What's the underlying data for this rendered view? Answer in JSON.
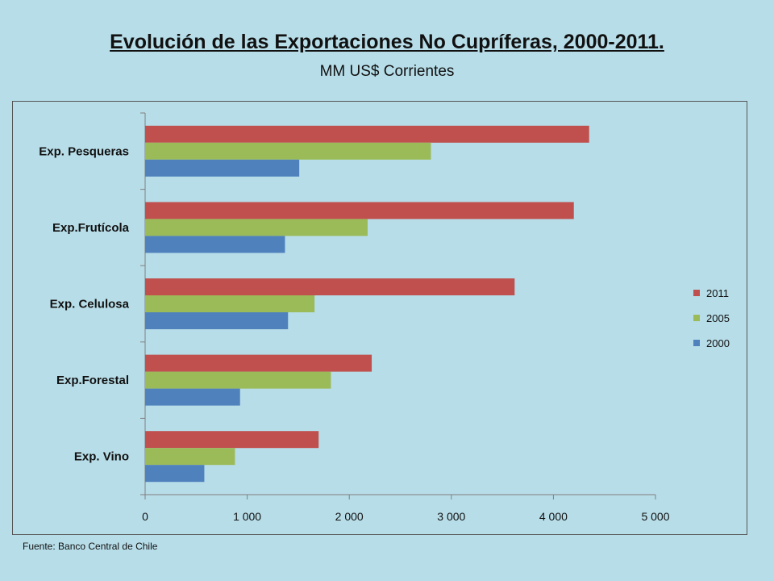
{
  "slide": {
    "title": "Evolución de las Exportaciones No Cupríferas, 2000-2011.",
    "subtitle": "MM US$ Corrientes",
    "source": "Fuente: Banco Central de Chile"
  },
  "chart_data": {
    "type": "bar",
    "orientation": "horizontal",
    "categories": [
      "Exp. Pesqueras",
      "Exp.Frutícola",
      "Exp. Celulosa",
      "Exp.Forestal",
      "Exp. Vino"
    ],
    "series": [
      {
        "name": "2011",
        "color": "#c0504d",
        "values": [
          4350,
          4200,
          3620,
          2220,
          1700
        ]
      },
      {
        "name": "2005",
        "color": "#9bbb59",
        "values": [
          2800,
          2180,
          1660,
          1820,
          880
        ]
      },
      {
        "name": "2000",
        "color": "#4f81bd",
        "values": [
          1510,
          1370,
          1400,
          930,
          580
        ]
      }
    ],
    "xlim": [
      0,
      5000
    ],
    "xticks": [
      0,
      1000,
      2000,
      3000,
      4000,
      5000
    ],
    "xtick_labels": [
      "0",
      "1 000",
      "2 000",
      "3 000",
      "4 000",
      "5 000"
    ],
    "grid": false,
    "legend_position": "right"
  }
}
